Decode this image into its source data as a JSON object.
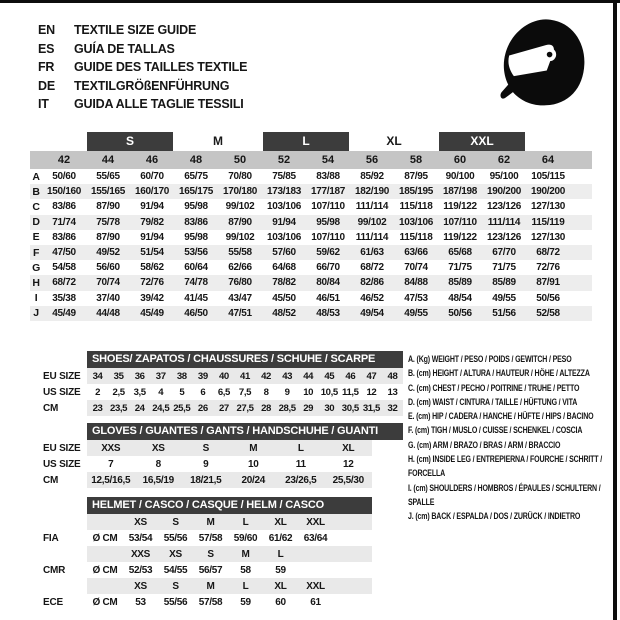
{
  "header": {
    "languages": [
      {
        "code": "EN",
        "text": "TEXTILE SIZE GUIDE"
      },
      {
        "code": "ES",
        "text": "GUÍA DE TALLAS"
      },
      {
        "code": "FR",
        "text": "GUIDE DES TAILLES TEXTILE"
      },
      {
        "code": "DE",
        "text": "TEXTILGRÖßENFÜHRUNG"
      },
      {
        "code": "IT",
        "text": "GUIDA ALLE TAGLIE TESSILI"
      }
    ],
    "icon": "racing-helmet-icon"
  },
  "main_table": {
    "size_groups": [
      {
        "label": "S",
        "dark": true
      },
      {
        "label": "M",
        "dark": false
      },
      {
        "label": "L",
        "dark": true
      },
      {
        "label": "XL",
        "dark": false
      },
      {
        "label": "XXL",
        "dark": true
      }
    ],
    "columns": [
      "42",
      "44",
      "46",
      "48",
      "50",
      "52",
      "54",
      "56",
      "58",
      "60",
      "62",
      "64"
    ],
    "rows": [
      {
        "label": "A",
        "values": [
          "50/60",
          "55/65",
          "60/70",
          "65/75",
          "70/80",
          "75/85",
          "83/88",
          "85/92",
          "87/95",
          "90/100",
          "95/100",
          "105/115"
        ]
      },
      {
        "label": "B",
        "values": [
          "150/160",
          "155/165",
          "160/170",
          "165/175",
          "170/180",
          "173/183",
          "177/187",
          "182/190",
          "185/195",
          "187/198",
          "190/200",
          "190/200"
        ]
      },
      {
        "label": "C",
        "values": [
          "83/86",
          "87/90",
          "91/94",
          "95/98",
          "99/102",
          "103/106",
          "107/110",
          "111/114",
          "115/118",
          "119/122",
          "123/126",
          "127/130"
        ]
      },
      {
        "label": "D",
        "values": [
          "71/74",
          "75/78",
          "79/82",
          "83/86",
          "87/90",
          "91/94",
          "95/98",
          "99/102",
          "103/106",
          "107/110",
          "111/114",
          "115/119"
        ]
      },
      {
        "label": "E",
        "values": [
          "83/86",
          "87/90",
          "91/94",
          "95/98",
          "99/102",
          "103/106",
          "107/110",
          "111/114",
          "115/118",
          "119/122",
          "123/126",
          "127/130"
        ]
      },
      {
        "label": "F",
        "values": [
          "47/50",
          "49/52",
          "51/54",
          "53/56",
          "55/58",
          "57/60",
          "59/62",
          "61/63",
          "63/66",
          "65/68",
          "67/70",
          "68/72"
        ]
      },
      {
        "label": "G",
        "values": [
          "54/58",
          "56/60",
          "58/62",
          "60/64",
          "62/66",
          "64/68",
          "66/70",
          "68/72",
          "70/74",
          "71/75",
          "71/75",
          "72/76"
        ]
      },
      {
        "label": "H",
        "values": [
          "68/72",
          "70/74",
          "72/76",
          "74/78",
          "76/80",
          "78/82",
          "80/84",
          "82/86",
          "84/88",
          "85/89",
          "85/89",
          "87/91"
        ]
      },
      {
        "label": "I",
        "values": [
          "35/38",
          "37/40",
          "39/42",
          "41/45",
          "43/47",
          "45/50",
          "46/51",
          "46/52",
          "47/53",
          "48/54",
          "49/55",
          "50/56"
        ]
      },
      {
        "label": "J",
        "values": [
          "45/49",
          "44/48",
          "45/49",
          "46/50",
          "47/51",
          "48/52",
          "48/53",
          "49/54",
          "49/55",
          "50/56",
          "51/56",
          "52/58"
        ]
      }
    ]
  },
  "shoes_table": {
    "title": "SHOES/ ZAPATOS / CHAUSSURES / SCHUHE / SCARPE",
    "rows": [
      {
        "label": "EU SIZE",
        "values": [
          "34",
          "35",
          "36",
          "37",
          "38",
          "39",
          "40",
          "41",
          "42",
          "43",
          "44",
          "45",
          "46",
          "47",
          "48"
        ]
      },
      {
        "label": "US SIZE",
        "values": [
          "2",
          "2,5",
          "3,5",
          "4",
          "5",
          "6",
          "6,5",
          "7,5",
          "8",
          "9",
          "10",
          "10,5",
          "11,5",
          "12",
          "13"
        ]
      },
      {
        "label": "CM",
        "values": [
          "23",
          "23,5",
          "24",
          "24,5",
          "25,5",
          "26",
          "27",
          "27,5",
          "28",
          "28,5",
          "29",
          "30",
          "30,5",
          "31,5",
          "32"
        ]
      }
    ]
  },
  "gloves_table": {
    "title": "GLOVES / GUANTES / GANTS / HANDSCHUHE / GUANTI",
    "rows": [
      {
        "label": "EU SIZE",
        "values": [
          "XXS",
          "XS",
          "S",
          "M",
          "L",
          "XL"
        ]
      },
      {
        "label": "US SIZE",
        "values": [
          "7",
          "8",
          "9",
          "10",
          "11",
          "12"
        ]
      },
      {
        "label": "CM",
        "values": [
          "12,5/16,5",
          "16,5/19",
          "18/21,5",
          "20/24",
          "23/26,5",
          "25,5/30"
        ]
      }
    ]
  },
  "helmet_table": {
    "title": "HELMET / CASCO / CASQUE / HELM / CASCO",
    "groups": [
      {
        "label": "FIA",
        "unit": "Ø CM",
        "sizes": [
          "XS",
          "S",
          "M",
          "L",
          "XL",
          "XXL"
        ],
        "values": [
          "53/54",
          "55/56",
          "57/58",
          "59/60",
          "61/62",
          "63/64"
        ]
      },
      {
        "label": "CMR",
        "unit": "Ø CM",
        "sizes": [
          "XXS",
          "XS",
          "S",
          "M",
          "L",
          ""
        ],
        "values": [
          "52/53",
          "54/55",
          "56/57",
          "58",
          "59",
          ""
        ]
      },
      {
        "label": "ECE",
        "unit": "Ø CM",
        "sizes": [
          "XS",
          "S",
          "M",
          "L",
          "XL",
          "XXL"
        ],
        "values": [
          "53",
          "55/56",
          "57/58",
          "59",
          "60",
          "61"
        ]
      }
    ]
  },
  "legend": {
    "items": [
      "A. (Kg) WEIGHT / PESO / POIDS / GEWITCH / PESO",
      "B. (cm) HEIGHT / ALTURA / HAUTEUR / HÖHE / ALTEZZA",
      "C. (cm) CHEST / PECHO / POITRINE / TRUHE / PETTO",
      "D. (cm) WAIST / CINTURA / TAILLE / HÜFTUNG / VITA",
      "E. (cm) HIP / CADERA / HANCHE / HÜFTE / HIPS / BACINO",
      "F. (cm) TIGH / MUSLO / CUISSE / SCHENKEL / COSCIA",
      "G. (cm) ARM / BRAZO / BRAS / ARM / BRACCIO",
      "H. (cm) INSIDE LEG / ENTREPIERNA / FOURCHE / SCHRITT / FORCELLA",
      "I. (cm) SHOULDERS / HOMBROS / ÉPAULES / SCHULTERN / SPALLE",
      "J. (cm) BACK / ESPALDA / DOS / ZURÜCK / INDIETRO"
    ]
  },
  "colors": {
    "dark_bar": "#3c3c3c",
    "number_row_gray": "#c5c5c5",
    "stripe_gray": "#ededed",
    "section_row_gray": "#e9e9e9",
    "text": "#161616"
  }
}
